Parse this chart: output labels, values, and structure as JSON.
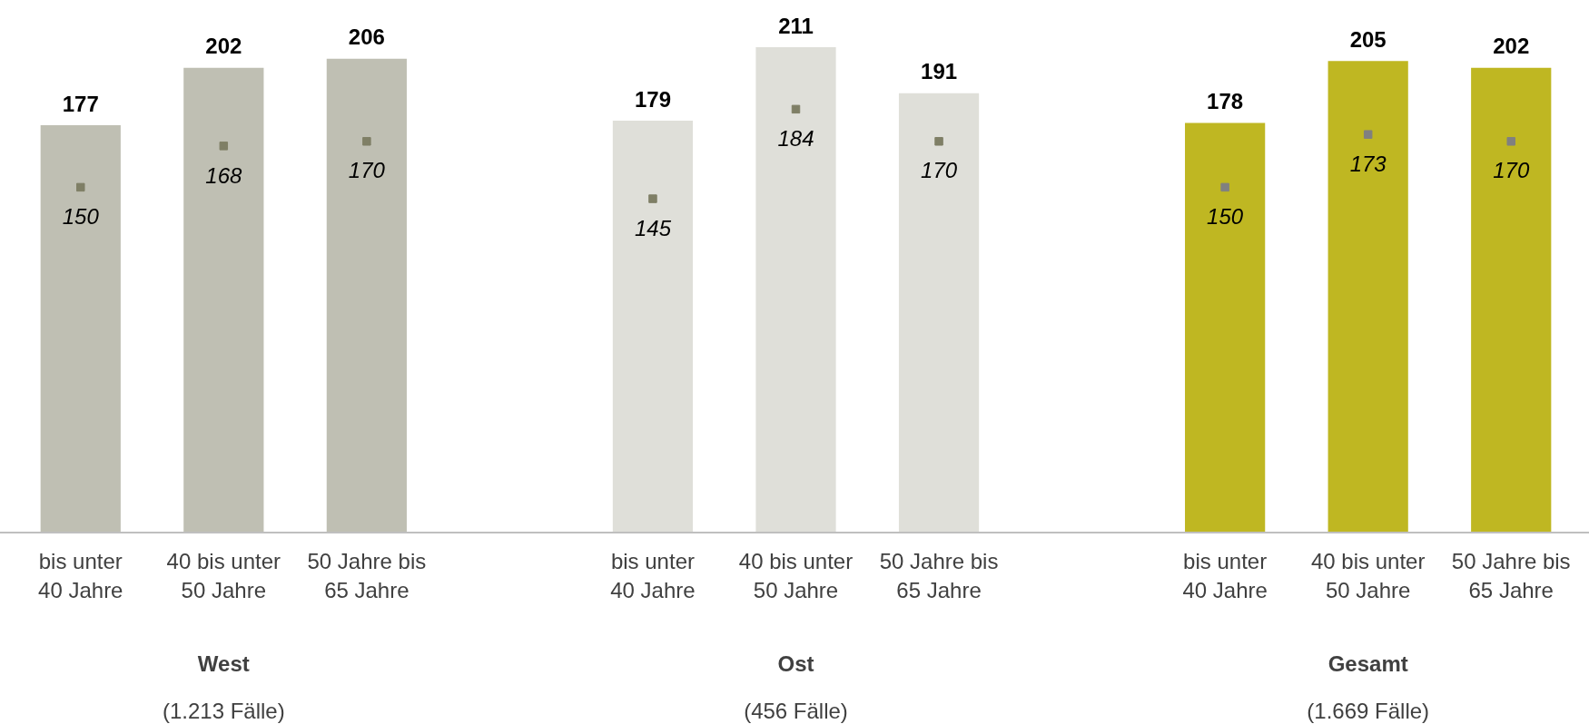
{
  "chart_data": {
    "type": "bar",
    "categories": [
      "bis unter 40 Jahre",
      "40 bis unter 50 Jahre",
      "50 Jahre bis 65 Jahre",
      "bis unter 40 Jahre",
      "40 bis unter 50 Jahre",
      "50 Jahre bis 65 Jahre",
      "bis unter 40 Jahre",
      "40 bis unter 50 Jahre",
      "50 Jahre bis 65 Jahre"
    ],
    "series": [
      {
        "colors": [
          "#bfbfb3",
          "#bfbfb3",
          "#bfbfb3",
          "#dfdfd9",
          "#dfdfd9",
          "#dfdfd9",
          "#bfb722",
          "#bfb722",
          "#bfb722"
        ],
        "values": [
          177,
          202,
          206,
          179,
          211,
          191,
          178,
          205,
          202
        ],
        "value_labels": [
          "177",
          "202",
          "206",
          "179",
          "211",
          "191",
          "178",
          "205",
          "202"
        ]
      },
      {
        "type": "scatter",
        "marker": "square",
        "colors": [
          "#7f7f66",
          "#7f7f66",
          "#7f7f66",
          "#7f7f66",
          "#7f7f66",
          "#7f7f66",
          "#808080",
          "#808080",
          "#808080"
        ],
        "values": [
          150,
          168,
          170,
          145,
          184,
          170,
          150,
          173,
          170
        ],
        "value_labels": [
          "150",
          "168",
          "170",
          "145",
          "184",
          "170",
          "150",
          "173",
          "170"
        ]
      }
    ],
    "annotations": [
      "West",
      "(1.213 Fälle)",
      "Ost",
      "(456 Fälle)",
      "Gesamt",
      "(1.669 Fälle)"
    ],
    "legend": false
  }
}
